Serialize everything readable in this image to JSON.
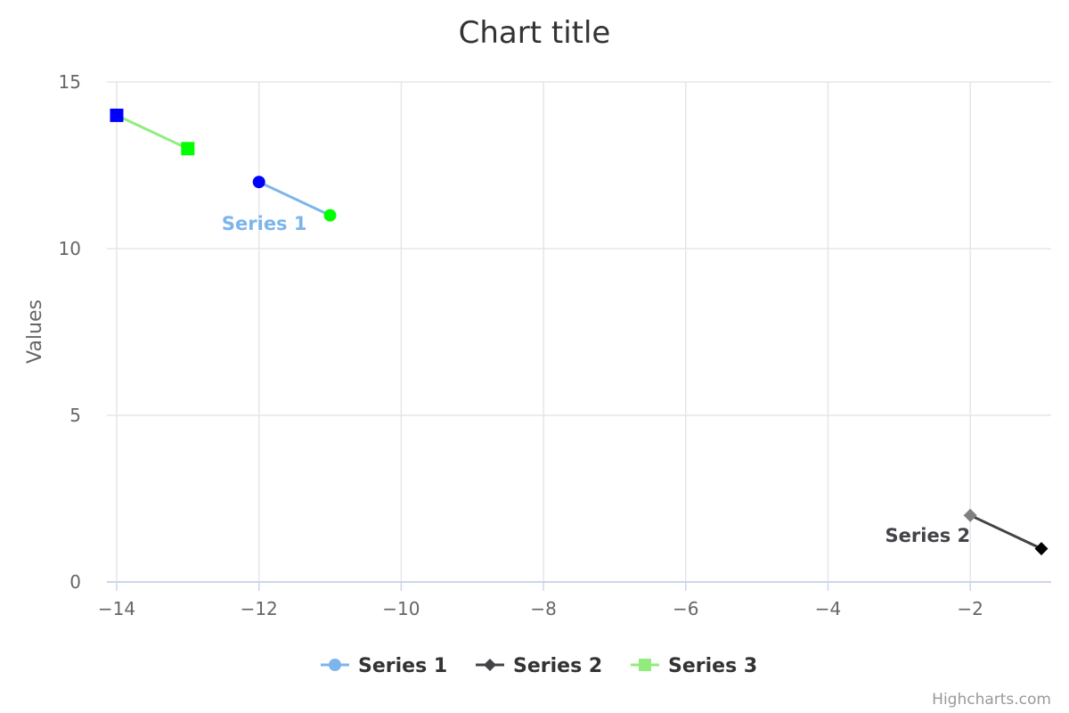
{
  "chart_data": {
    "type": "line",
    "title": "Chart title",
    "xlabel": "",
    "ylabel": "Values",
    "xlim": [
      -14,
      -1
    ],
    "ylim": [
      0,
      15
    ],
    "x_ticks": [
      "−14",
      "−12",
      "−10",
      "−8",
      "−6",
      "−4",
      "−2"
    ],
    "y_ticks": [
      "0",
      "5",
      "10",
      "15"
    ],
    "grid": true,
    "legend_position": "bottom-center",
    "series": [
      {
        "name": "Series 1",
        "color": "#7cb5ec",
        "marker": "circle",
        "label_color": "#7cb5ec",
        "points": [
          {
            "x": -12,
            "y": 12,
            "color": "#0000ff"
          },
          {
            "x": -11,
            "y": 11,
            "color": "#00ff00"
          }
        ]
      },
      {
        "name": "Series 2",
        "color": "#434348",
        "marker": "diamond",
        "label_color": "#434348",
        "points": [
          {
            "x": -2,
            "y": 2,
            "color": "#808080"
          },
          {
            "x": -1,
            "y": 1,
            "color": "#000000"
          }
        ]
      },
      {
        "name": "Series 3",
        "color": "#90ed7d",
        "marker": "square",
        "label_color": "#90ed7d",
        "points": [
          {
            "x": -14,
            "y": 14,
            "color": "#0000ff"
          },
          {
            "x": -13,
            "y": 13,
            "color": "#00ff00"
          }
        ]
      }
    ],
    "credits": "Highcharts.com"
  }
}
